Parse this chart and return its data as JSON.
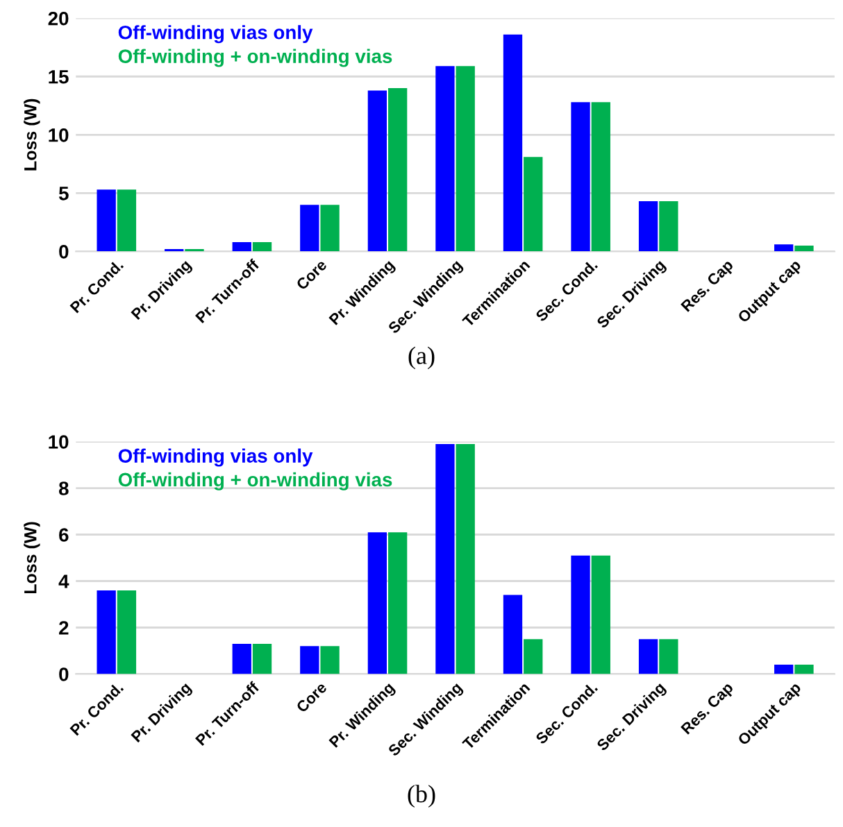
{
  "chart_data": [
    {
      "type": "bar",
      "ylabel": "Loss (W)",
      "annotations": [
        "(a)"
      ],
      "categories": [
        "Pr. Cond.",
        "Pr. Driving",
        "Pr. Turn-off",
        "Core",
        "Pr. Winding",
        "Sec. Winding",
        "Termination",
        "Sec. Cond.",
        "Sec. Driving",
        "Res. Cap",
        "Output cap"
      ],
      "series": [
        {
          "name": "Off-winding vias only",
          "color": "#0000ff",
          "values": [
            5.3,
            0.2,
            0.8,
            4.0,
            13.8,
            15.9,
            18.6,
            12.8,
            4.3,
            0,
            0.6
          ]
        },
        {
          "name": "Off-winding + on-winding vias",
          "color": "#00b050",
          "values": [
            5.3,
            0.2,
            0.8,
            4.0,
            14.0,
            15.9,
            8.1,
            12.8,
            4.3,
            0,
            0.5
          ]
        }
      ],
      "ylim": [
        0,
        20
      ],
      "yticks": [
        0,
        5,
        10,
        15,
        20
      ],
      "grid": "y",
      "legend": "top left"
    },
    {
      "type": "bar",
      "ylabel": "Loss (W)",
      "annotations": [
        "(b)"
      ],
      "categories": [
        "Pr. Cond.",
        "Pr. Driving",
        "Pr. Turn-off",
        "Core",
        "Pr. Winding",
        "Sec. Winding",
        "Termination",
        "Sec. Cond.",
        "Sec. Driving",
        "Res. Cap",
        "Output cap"
      ],
      "series": [
        {
          "name": "Off-winding vias only",
          "color": "#0000ff",
          "values": [
            3.6,
            0,
            1.3,
            1.2,
            6.1,
            9.9,
            3.4,
            5.1,
            1.5,
            0,
            0.4
          ]
        },
        {
          "name": "Off-winding + on-winding vias",
          "color": "#00b050",
          "values": [
            3.6,
            0,
            1.3,
            1.2,
            6.1,
            9.9,
            1.5,
            5.1,
            1.5,
            0,
            0.4
          ]
        }
      ],
      "ylim": [
        0,
        10
      ],
      "yticks": [
        0,
        2,
        4,
        6,
        8,
        10
      ],
      "grid": "y",
      "legend": "top left"
    }
  ]
}
